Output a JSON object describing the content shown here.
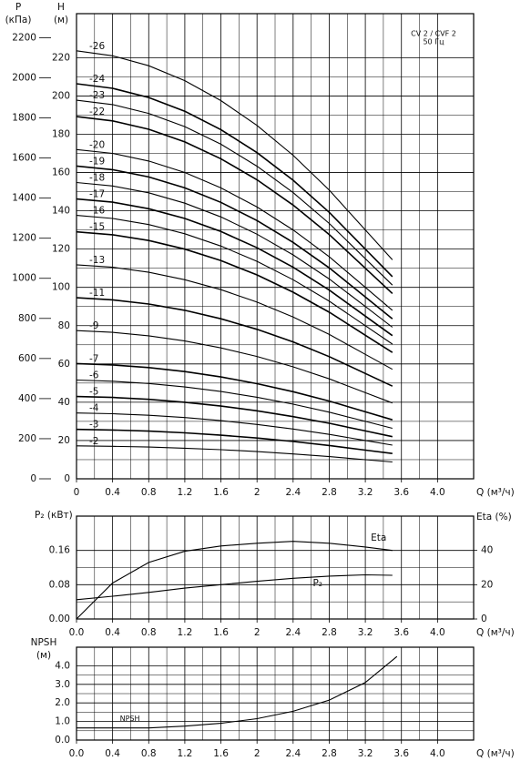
{
  "chart_data": [
    {
      "type": "line",
      "y2label": [
        "P",
        "(кПа)"
      ],
      "ylabel": [
        "H",
        "(м)"
      ],
      "xlabel": "Q (м³/ч)",
      "annotations": [
        "CV 2 / CVF 2",
        "50 Гц"
      ],
      "xlim": [
        0,
        4.4
      ],
      "xticks": [
        0,
        0.4,
        0.8,
        1.2,
        1.6,
        2.0,
        2.4,
        2.8,
        3.2,
        3.6,
        {
          "value": 4,
          "label": "4.0"
        }
      ],
      "ylim": [
        0,
        243
      ],
      "yticks": [
        0,
        20,
        40,
        60,
        80,
        100,
        120,
        140,
        160,
        180,
        200,
        220
      ],
      "y2lim": [
        0,
        2320
      ],
      "y2ticks": [
        0,
        200,
        400,
        600,
        800,
        1000,
        1200,
        1400,
        1600,
        1800,
        2000,
        2200
      ],
      "grid": true,
      "x": [
        0,
        0.4,
        0.8,
        1.2,
        1.6,
        2.0,
        2.4,
        2.8,
        3.2,
        3.5
      ],
      "series": [
        {
          "name": "-2",
          "color": "#000",
          "values": [
            17.2,
            17,
            16.6,
            16,
            15.2,
            14.2,
            13,
            11.6,
            10,
            8.8
          ]
        },
        {
          "name": "-3",
          "color": "#000",
          "values": [
            25.8,
            25.5,
            24.9,
            24,
            22.8,
            21.3,
            19.5,
            17.4,
            15,
            13.2
          ]
        },
        {
          "name": "-4",
          "color": "#000",
          "values": [
            34.4,
            34,
            33.2,
            32,
            30.4,
            28.4,
            26,
            23.2,
            20,
            17.6
          ]
        },
        {
          "name": "-5",
          "color": "#000",
          "values": [
            43,
            42.5,
            41.5,
            40,
            38,
            35.5,
            32.5,
            29,
            25,
            22
          ]
        },
        {
          "name": "-6",
          "color": "#000",
          "values": [
            51.6,
            51,
            49.8,
            48,
            45.6,
            42.6,
            39,
            34.8,
            30,
            26.4
          ]
        },
        {
          "name": "-7",
          "color": "#000",
          "values": [
            60.2,
            59.5,
            58.1,
            56,
            53.2,
            49.7,
            45.5,
            40.6,
            35,
            30.8
          ]
        },
        {
          "name": "-9",
          "color": "#000",
          "values": [
            77.4,
            76.5,
            74.7,
            72,
            68.4,
            63.9,
            58.5,
            52.2,
            45,
            39.6
          ]
        },
        {
          "name": "-11",
          "color": "#000",
          "values": [
            94.6,
            93.5,
            91.3,
            88,
            83.6,
            78.1,
            71.5,
            63.8,
            55,
            48.4
          ]
        },
        {
          "name": "-13",
          "color": "#000",
          "values": [
            111.8,
            110.5,
            107.9,
            104,
            98.8,
            92.3,
            84.5,
            75.4,
            65,
            57.2
          ]
        },
        {
          "name": "-15",
          "color": "#000",
          "values": [
            129,
            127.5,
            124.5,
            120,
            114,
            106.5,
            97.5,
            87,
            75,
            66
          ]
        },
        {
          "name": "-16",
          "color": "#000",
          "values": [
            137.6,
            136,
            132.8,
            128,
            121.6,
            113.6,
            104,
            92.8,
            80,
            70.4
          ]
        },
        {
          "name": "-17",
          "color": "#000",
          "values": [
            146.2,
            144.5,
            141.1,
            136,
            129.2,
            120.7,
            110.5,
            98.6,
            85,
            74.8
          ]
        },
        {
          "name": "-18",
          "color": "#000",
          "values": [
            154.8,
            153,
            149.4,
            144,
            136.8,
            127.8,
            117,
            104.4,
            90,
            79.2
          ]
        },
        {
          "name": "-19",
          "color": "#000",
          "values": [
            163.4,
            161.5,
            157.7,
            152,
            144.4,
            134.9,
            123.5,
            110.2,
            95,
            83.6
          ]
        },
        {
          "name": "-20",
          "color": "#000",
          "values": [
            172,
            170,
            166,
            160,
            152,
            142,
            130,
            116,
            100,
            88
          ]
        },
        {
          "name": "-22",
          "color": "#000",
          "values": [
            189.2,
            187,
            182.6,
            176,
            167.2,
            156.2,
            143,
            127.6,
            110,
            96.8
          ]
        },
        {
          "name": "-23",
          "color": "#000",
          "values": [
            197.8,
            195.5,
            190.9,
            184,
            174.8,
            163.3,
            149.5,
            133.4,
            115,
            101.2
          ]
        },
        {
          "name": "-24",
          "color": "#000",
          "values": [
            206.4,
            204,
            199.2,
            192,
            182.4,
            170.4,
            156,
            139.2,
            120,
            105.6
          ]
        },
        {
          "name": "-26",
          "color": "#000",
          "values": [
            223.6,
            221,
            215.8,
            208,
            197.6,
            184.6,
            169,
            150.8,
            130,
            114.4
          ]
        }
      ]
    },
    {
      "type": "line",
      "ylabel": [
        "P₂ (кВт)"
      ],
      "y2label": [
        "Eta (%)"
      ],
      "xlabel": "Q (м³/ч)",
      "xlim": [
        0,
        4.4
      ],
      "xticks": [
        {
          "value": 0,
          "label": "0.0"
        },
        0.4,
        0.8,
        1.2,
        1.6,
        2.0,
        2.4,
        2.8,
        3.2,
        3.6,
        {
          "value": 4,
          "label": "4.0"
        }
      ],
      "ylim": [
        0,
        0.24
      ],
      "yticks": [
        {
          "value": 0,
          "label": "0.00"
        },
        {
          "value": 0.08,
          "label": "0.08"
        },
        0.16
      ],
      "y2lim": [
        0,
        60
      ],
      "y2ticks": [
        0,
        20,
        40
      ],
      "grid": true,
      "x": [
        0,
        0.4,
        0.8,
        1.2,
        1.6,
        2.0,
        2.4,
        2.8,
        3.2,
        3.5
      ],
      "series": [
        {
          "name": "Eta",
          "color": "#000",
          "axis": "y2",
          "values": [
            0,
            21,
            33,
            39.5,
            42.6,
            44.2,
            45.3,
            44.2,
            42,
            40
          ]
        },
        {
          "name": "P₂",
          "color": "#000",
          "values": [
            0.045,
            0.053,
            0.062,
            0.072,
            0.08,
            0.088,
            0.095,
            0.1,
            0.103,
            0.102
          ]
        }
      ]
    },
    {
      "type": "line",
      "ylabel": [
        "NPSH",
        "(м)"
      ],
      "xlabel": "Q (м³/ч)",
      "xlim": [
        0,
        4.4
      ],
      "xticks": [
        {
          "value": 0,
          "label": "0.0"
        },
        0.4,
        0.8,
        1.2,
        1.6,
        2.0,
        2.4,
        2.8,
        3.2,
        3.6,
        {
          "value": 4,
          "label": "4.0"
        }
      ],
      "ylim": [
        0,
        5
      ],
      "yticks": [
        {
          "value": 0,
          "label": "0.0"
        },
        {
          "value": 1,
          "label": "1.0"
        },
        {
          "value": 2,
          "label": "2.0"
        },
        {
          "value": 3,
          "label": "3.0"
        },
        {
          "value": 4,
          "label": "4.0"
        }
      ],
      "grid": true,
      "x": [
        0,
        0.4,
        0.8,
        1.2,
        1.6,
        2.0,
        2.4,
        2.8,
        3.2,
        3.55
      ],
      "series": [
        {
          "name": "NPSH",
          "color": "#000",
          "values": [
            0.65,
            0.65,
            0.65,
            0.75,
            0.9,
            1.15,
            1.55,
            2.15,
            3.1,
            4.5
          ]
        }
      ]
    }
  ]
}
